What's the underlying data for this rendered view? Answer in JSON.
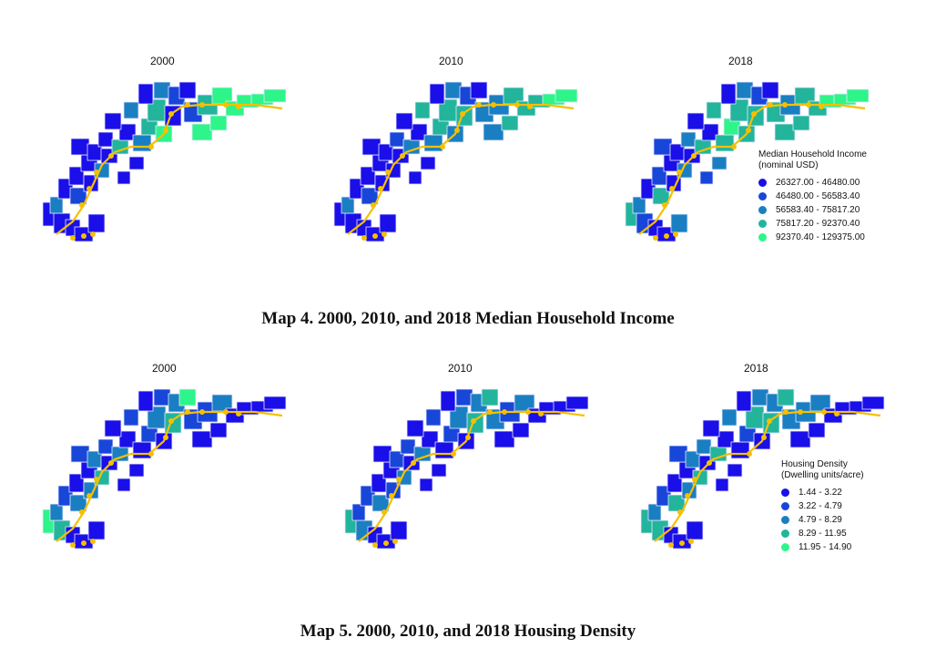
{
  "figure1": {
    "panels": [
      {
        "year": "2000"
      },
      {
        "year": "2010"
      },
      {
        "year": "2018"
      }
    ],
    "legend": {
      "title_line1": "Median Household Income",
      "title_line2": "(nominal USD)",
      "items": [
        {
          "label": "26327.00 - 46480.00",
          "color": "#1a0fe8"
        },
        {
          "label": "46480.00 - 56583.40",
          "color": "#1846d8"
        },
        {
          "label": "56583.40 - 75817.20",
          "color": "#1a7fc2"
        },
        {
          "label": "75817.20 - 92370.40",
          "color": "#22b59c"
        },
        {
          "label": "92370.40 - 129375.00",
          "color": "#2ef58a"
        }
      ]
    },
    "caption": "Map 4. 2000, 2010, and 2018 Median Household Income"
  },
  "figure2": {
    "panels": [
      {
        "year": "2000"
      },
      {
        "year": "2010"
      },
      {
        "year": "2018"
      }
    ],
    "legend": {
      "title_line1": "Housing Density",
      "title_line2": "(Dwelling units/acre)",
      "items": [
        {
          "label": "1.44 - 3.22",
          "color": "#1a0fe8"
        },
        {
          "label": "3.22 - 4.79",
          "color": "#1846d8"
        },
        {
          "label": "4.79 - 8.29",
          "color": "#1a7fc2"
        },
        {
          "label": "8.29 - 11.95",
          "color": "#22b59c"
        },
        {
          "label": "11.95 - 14.90",
          "color": "#2ef58a"
        }
      ]
    },
    "caption": "Map 5. 2000, 2010, and 2018 Housing Density"
  },
  "colors": {
    "c1": "#1a0fe8",
    "c2": "#1846d8",
    "c3": "#1a7fc2",
    "c4": "#22b59c",
    "c5": "#2ef58a",
    "transit_line": "#f5c000"
  }
}
